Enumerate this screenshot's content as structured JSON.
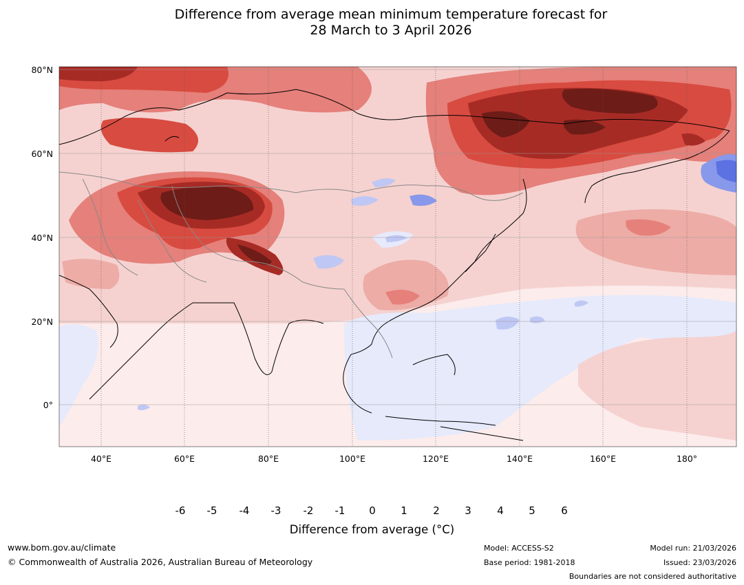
{
  "title": {
    "line1": "Difference from average mean minimum temperature forecast for",
    "line2": "28 March to 3 April 2026"
  },
  "map": {
    "lat_labels": [
      "80°N",
      "60°N",
      "40°N",
      "20°N",
      "0°"
    ],
    "lon_labels": [
      "40°E",
      "60°E",
      "80°E",
      "100°E",
      "120°E",
      "140°E",
      "160°E",
      "180°"
    ]
  },
  "legend": {
    "ticks": [
      "-6",
      "-5",
      "-4",
      "-3",
      "-2",
      "-1",
      "0",
      "1",
      "2",
      "3",
      "4",
      "5",
      "6"
    ],
    "colors": [
      "#1b2a78",
      "#2b3cb0",
      "#3050e0",
      "#5c72e2",
      "#8898ea",
      "#bfc7f4",
      "#e6eafb",
      "#fceceb",
      "#f5d2d0",
      "#edaca6",
      "#e5807a",
      "#d84b40",
      "#a72b25",
      "#6e1c17"
    ],
    "label": "Difference from average (°C)"
  },
  "footer": {
    "website": "www.bom.gov.au/climate",
    "copyright": "© Commonwealth of Australia 2026, Australian Bureau of Meteorology",
    "model": "Model: ACCESS-S2",
    "base_period": "Base period: 1981-2018",
    "model_run": "Model run: 21/03/2026",
    "issued": "Issued: 23/03/2026",
    "disclaimer": "Boundaries are not considered authoritative"
  }
}
